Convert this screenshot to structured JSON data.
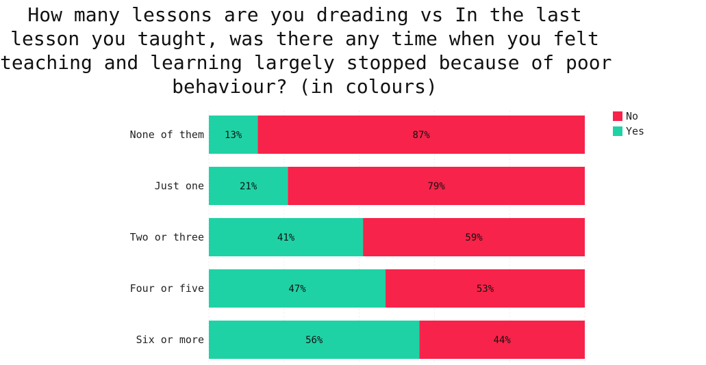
{
  "chart_data": {
    "type": "bar",
    "orientation": "horizontal",
    "stacked": true,
    "normalized": true,
    "title_lines": [
      "How many lessons are you dreading vs In the last",
      "lesson you taught, was there any time when you felt",
      "teaching and learning largely stopped because of poor",
      "behaviour? (in colours)"
    ],
    "categories": [
      "None of them",
      "Just one",
      "Two or three",
      "Four or five",
      "Six or more"
    ],
    "series": [
      {
        "name": "Yes",
        "color": "#1fd2a5",
        "values": [
          13,
          21,
          41,
          47,
          56
        ],
        "labels": [
          "13%",
          "21%",
          "41%",
          "47%",
          "56%"
        ]
      },
      {
        "name": "No",
        "color": "#f7234a",
        "values": [
          87,
          79,
          59,
          53,
          44
        ],
        "labels": [
          "87%",
          "79%",
          "59%",
          "53%",
          "44%"
        ]
      }
    ],
    "legend": {
      "position": "top-right",
      "order": [
        "No",
        "Yes"
      ]
    },
    "xlim": [
      0,
      100
    ],
    "grid": true
  }
}
